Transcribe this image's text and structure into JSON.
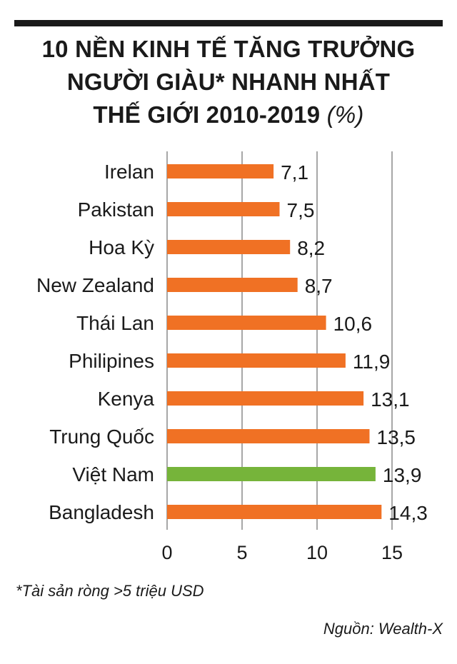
{
  "title": {
    "lines": [
      "10 NỀN KINH TẾ TĂNG TRƯỞNG",
      "NGƯỜI GIÀU* NHANH NHẤT",
      "THẾ GIỚI 2010-2019"
    ],
    "unit": "(%)"
  },
  "footnote": "*Tài sản ròng >5 triệu USD",
  "source": "Nguồn: Wealth-X",
  "colors": {
    "default_bar": "#F07124",
    "highlight_bar": "#76B43A",
    "gridline": "#8A8A8A",
    "text": "#1A1A1A"
  },
  "chart_data": {
    "type": "bar",
    "orientation": "horizontal",
    "title": "10 NỀN KINH TẾ TĂNG TRƯỞNG NGƯỜI GIÀU* NHANH NHẤT THẾ GIỚI 2010-2019 (%)",
    "xlabel": "",
    "ylabel": "",
    "categories": [
      "Irelan",
      "Pakistan",
      "Hoa Kỳ",
      "New Zealand",
      "Thái Lan",
      "Philipines",
      "Kenya",
      "Trung Quốc",
      "Việt Nam",
      "Bangladesh"
    ],
    "values": [
      7.1,
      7.5,
      8.2,
      8.7,
      10.6,
      11.9,
      13.1,
      13.5,
      13.9,
      14.3
    ],
    "value_labels": [
      "7,1",
      "7,5",
      "8,2",
      "8,7",
      "10,6",
      "11,9",
      "13,1",
      "13,5",
      "13,9",
      "14,3"
    ],
    "highlight": "Việt Nam",
    "xlim": [
      0,
      15
    ],
    "xticks": [
      0,
      5,
      10,
      15
    ],
    "xtick_labels": [
      "0",
      "5",
      "10",
      "15"
    ],
    "grid": true,
    "legend": "none"
  }
}
